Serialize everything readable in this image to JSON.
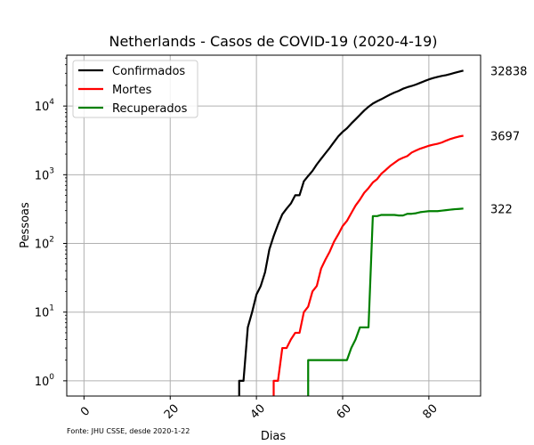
{
  "chart_data": {
    "type": "line",
    "title": "Netherlands - Casos de COVID-19 (2020-4-19)",
    "xlabel": "Dias",
    "ylabel": "Pessoas",
    "yscale": "log",
    "xlim": [
      -4,
      92
    ],
    "ylim": [
      0.6,
      55000
    ],
    "xticks": [
      "0",
      "20",
      "40",
      "60",
      "80"
    ],
    "yticks": [
      {
        "base": "10",
        "exp": "0"
      },
      {
        "base": "10",
        "exp": "1"
      },
      {
        "base": "10",
        "exp": "2"
      },
      {
        "base": "10",
        "exp": "3"
      },
      {
        "base": "10",
        "exp": "4"
      }
    ],
    "grid": true,
    "legend_position": "top-left",
    "source_note": "Fonte: JHU CSSE, desde 2020-1-22",
    "series": [
      {
        "name": "Confirmados",
        "color": "#000000",
        "end_label": "32838",
        "points": [
          [
            36,
            0.001
          ],
          [
            36,
            1
          ],
          [
            37,
            1
          ],
          [
            38,
            6
          ],
          [
            39,
            10
          ],
          [
            40,
            18
          ],
          [
            41,
            24
          ],
          [
            42,
            38
          ],
          [
            43,
            82
          ],
          [
            44,
            128
          ],
          [
            45,
            188
          ],
          [
            46,
            265
          ],
          [
            47,
            321
          ],
          [
            48,
            382
          ],
          [
            49,
            503
          ],
          [
            50,
            503
          ],
          [
            51,
            804
          ],
          [
            52,
            959
          ],
          [
            53,
            1135
          ],
          [
            54,
            1413
          ],
          [
            55,
            1705
          ],
          [
            56,
            2051
          ],
          [
            57,
            2460
          ],
          [
            58,
            2994
          ],
          [
            59,
            3631
          ],
          [
            60,
            4204
          ],
          [
            61,
            4749
          ],
          [
            62,
            5560
          ],
          [
            63,
            6412
          ],
          [
            64,
            7431
          ],
          [
            65,
            8603
          ],
          [
            66,
            9762
          ],
          [
            67,
            10866
          ],
          [
            68,
            11750
          ],
          [
            69,
            12595
          ],
          [
            70,
            13614
          ],
          [
            71,
            14697
          ],
          [
            72,
            15723
          ],
          [
            73,
            16627
          ],
          [
            74,
            17851
          ],
          [
            75,
            18803
          ],
          [
            76,
            19580
          ],
          [
            77,
            20549
          ],
          [
            78,
            21762
          ],
          [
            79,
            23097
          ],
          [
            80,
            24413
          ],
          [
            81,
            25587
          ],
          [
            82,
            26551
          ],
          [
            83,
            27419
          ],
          [
            84,
            28153
          ],
          [
            85,
            29214
          ],
          [
            86,
            30449
          ],
          [
            87,
            31589
          ],
          [
            88,
            32838
          ]
        ]
      },
      {
        "name": "Mortes",
        "color": "#ff0000",
        "end_label": "3697",
        "points": [
          [
            44,
            0.001
          ],
          [
            44,
            1
          ],
          [
            45,
            1
          ],
          [
            46,
            3
          ],
          [
            47,
            3
          ],
          [
            48,
            4
          ],
          [
            49,
            5
          ],
          [
            50,
            5
          ],
          [
            51,
            10
          ],
          [
            52,
            12
          ],
          [
            53,
            20
          ],
          [
            54,
            24
          ],
          [
            55,
            43
          ],
          [
            56,
            58
          ],
          [
            57,
            76
          ],
          [
            58,
            106
          ],
          [
            59,
            136
          ],
          [
            60,
            179
          ],
          [
            61,
            213
          ],
          [
            62,
            276
          ],
          [
            63,
            356
          ],
          [
            64,
            434
          ],
          [
            65,
            546
          ],
          [
            66,
            639
          ],
          [
            67,
            771
          ],
          [
            68,
            864
          ],
          [
            69,
            1039
          ],
          [
            70,
            1173
          ],
          [
            71,
            1339
          ],
          [
            72,
            1487
          ],
          [
            73,
            1651
          ],
          [
            74,
            1766
          ],
          [
            75,
            1867
          ],
          [
            76,
            2101
          ],
          [
            77,
            2248
          ],
          [
            78,
            2396
          ],
          [
            79,
            2511
          ],
          [
            80,
            2643
          ],
          [
            81,
            2737
          ],
          [
            82,
            2823
          ],
          [
            83,
            2945
          ],
          [
            84,
            3134
          ],
          [
            85,
            3315
          ],
          [
            86,
            3459
          ],
          [
            87,
            3601
          ],
          [
            88,
            3697
          ]
        ]
      },
      {
        "name": "Recuperados",
        "color": "#008000",
        "end_label": "322",
        "points": [
          [
            52,
            0.001
          ],
          [
            52,
            2
          ],
          [
            53,
            2
          ],
          [
            54,
            2
          ],
          [
            55,
            2
          ],
          [
            56,
            2
          ],
          [
            57,
            2
          ],
          [
            58,
            2
          ],
          [
            59,
            2
          ],
          [
            60,
            2
          ],
          [
            61,
            2
          ],
          [
            62,
            3
          ],
          [
            63,
            4
          ],
          [
            64,
            6
          ],
          [
            65,
            6
          ],
          [
            66,
            6
          ],
          [
            67,
            250
          ],
          [
            68,
            250
          ],
          [
            69,
            260
          ],
          [
            70,
            260
          ],
          [
            71,
            260
          ],
          [
            72,
            260
          ],
          [
            73,
            255
          ],
          [
            74,
            255
          ],
          [
            75,
            270
          ],
          [
            76,
            270
          ],
          [
            77,
            275
          ],
          [
            78,
            285
          ],
          [
            79,
            290
          ],
          [
            80,
            295
          ],
          [
            81,
            295
          ],
          [
            82,
            295
          ],
          [
            83,
            300
          ],
          [
            84,
            305
          ],
          [
            85,
            310
          ],
          [
            86,
            315
          ],
          [
            87,
            318
          ],
          [
            88,
            322
          ]
        ]
      }
    ]
  }
}
